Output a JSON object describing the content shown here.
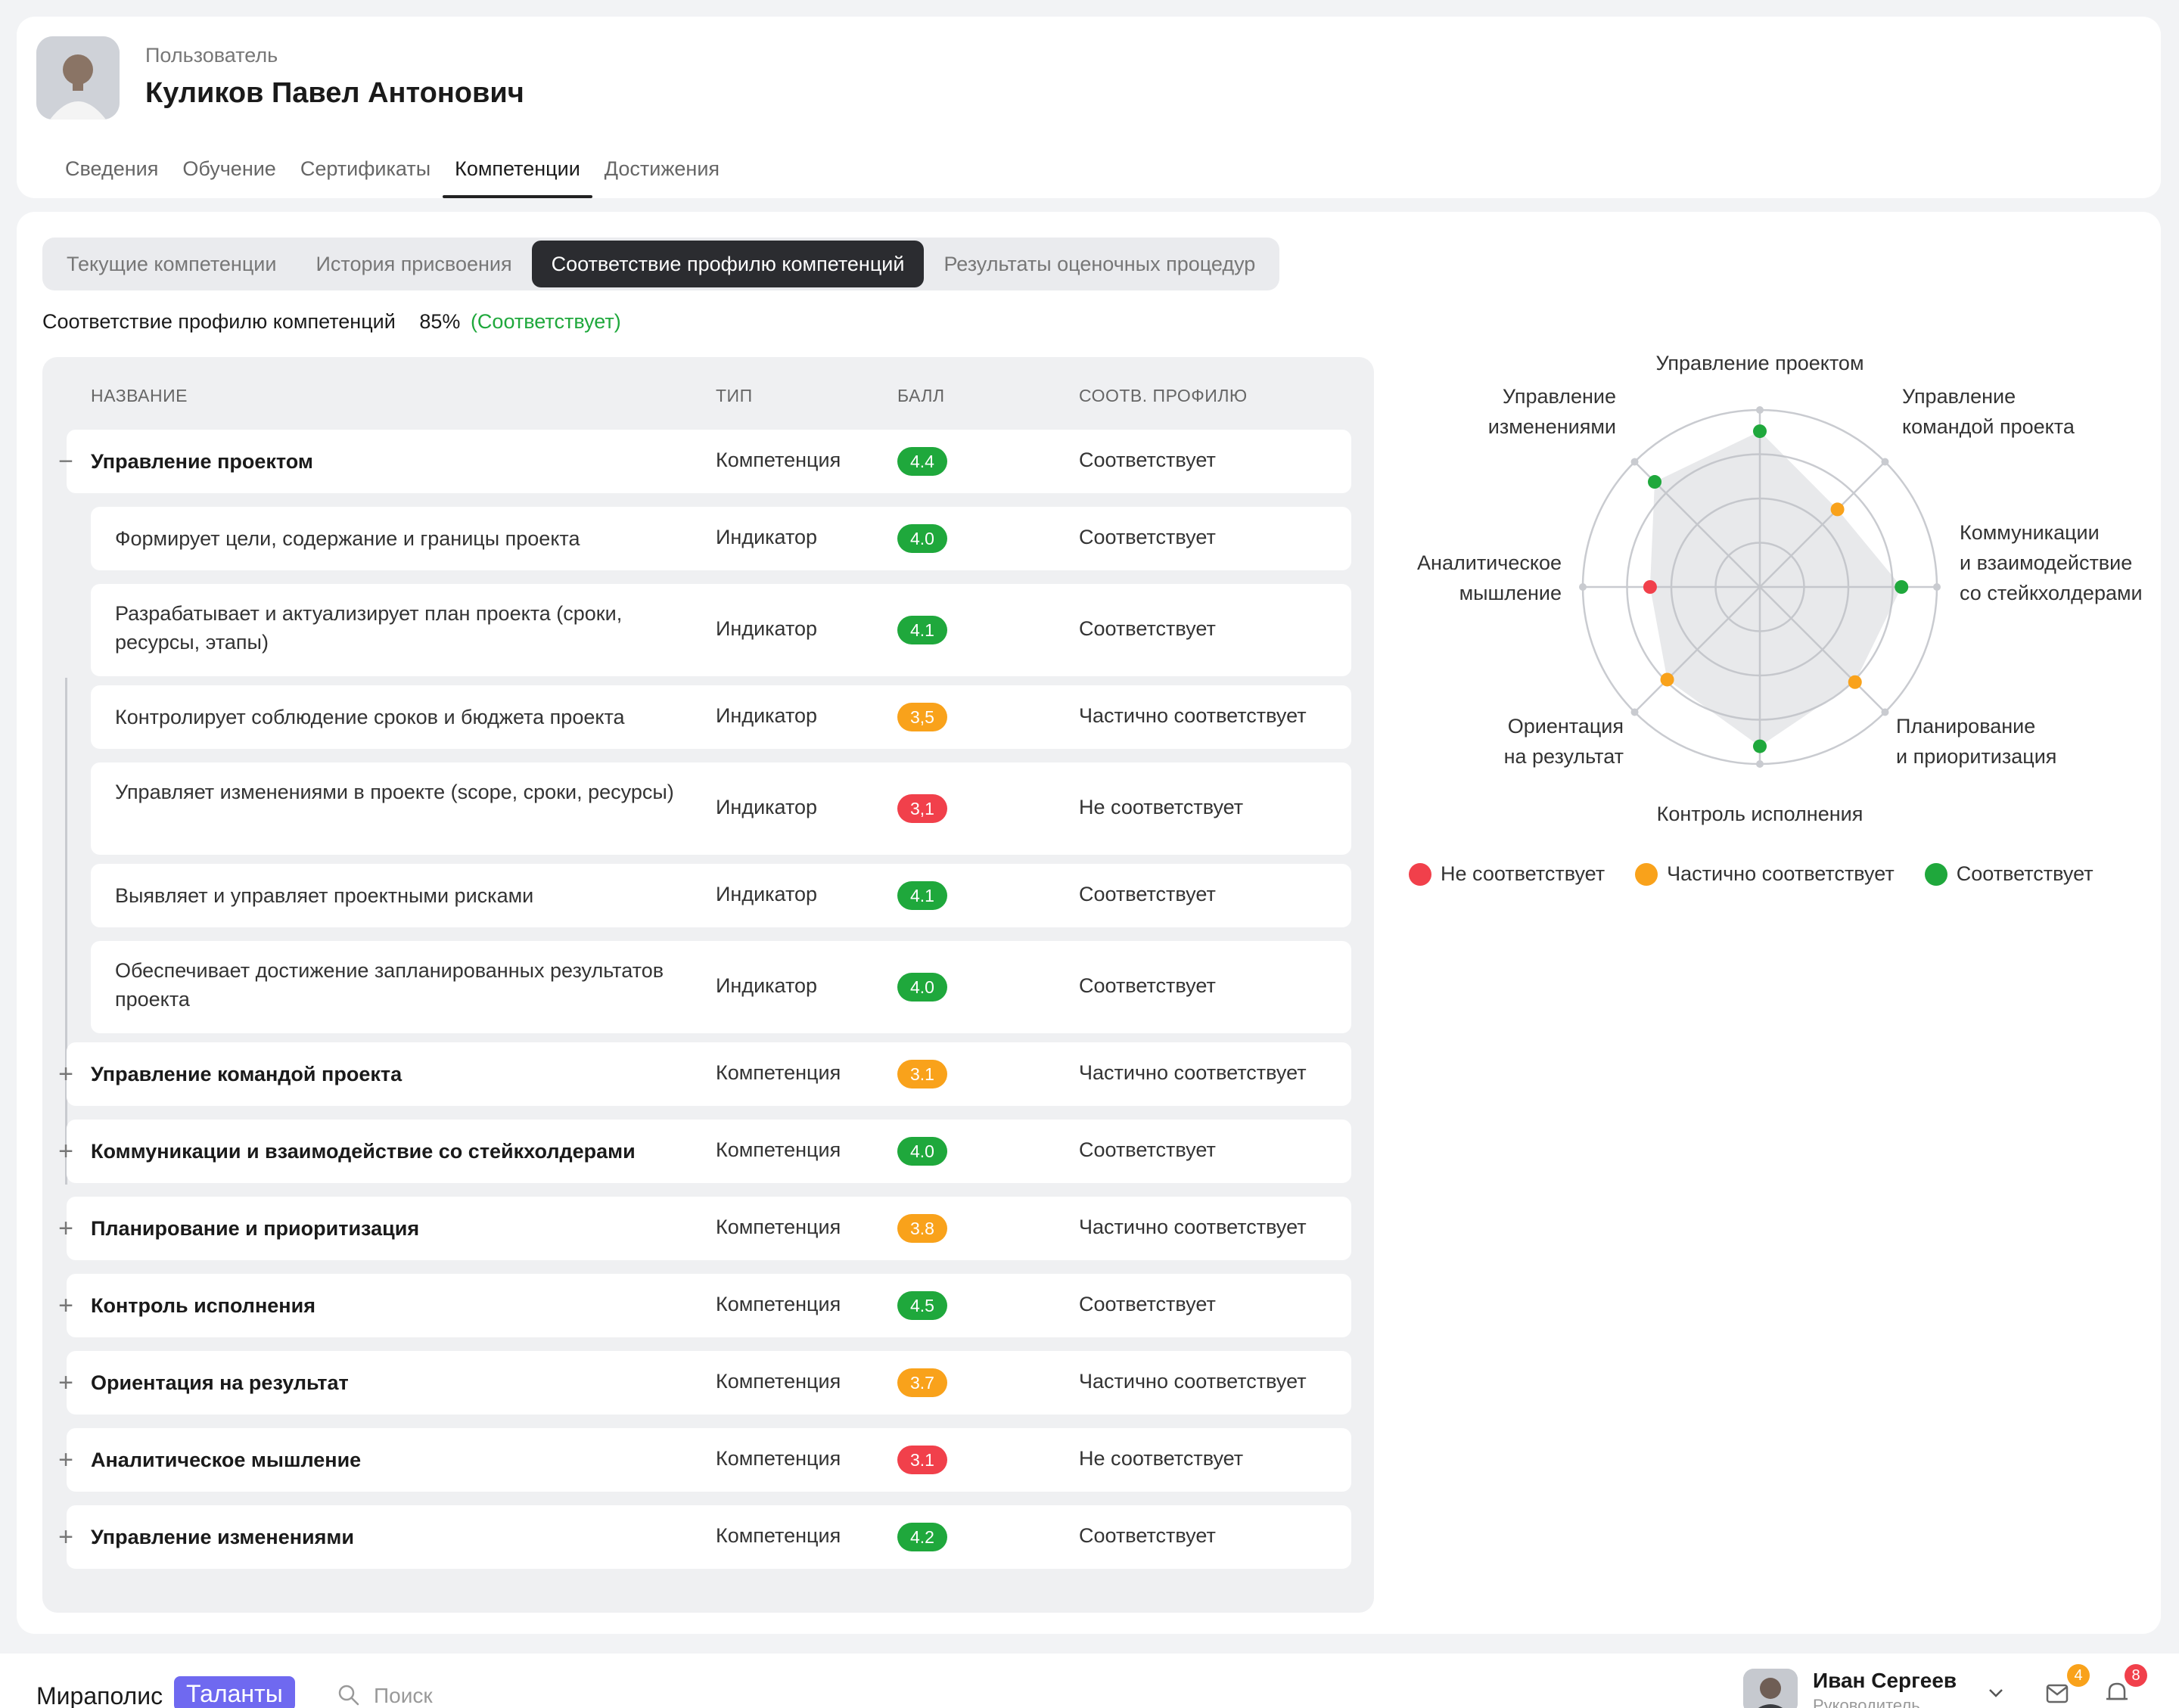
{
  "profile": {
    "label": "Пользователь",
    "name": "Куликов Павел Антонович",
    "tabs": [
      "Сведения",
      "Обучение",
      "Сертификаты",
      "Компетенции",
      "Достижения"
    ],
    "active_tab": 3
  },
  "subtabs": [
    "Текущие компетенции",
    "История присвоения",
    "Соответствие профилю компетенций",
    "Результаты оценочных процедур"
  ],
  "active_subtab": 2,
  "summary": {
    "label": "Соответствие профилю компетенций",
    "percent": "85%",
    "status": "(Соответствует)"
  },
  "table": {
    "headers": {
      "name": "НАЗВАНИЕ",
      "type": "ТИП",
      "score": "БАЛЛ",
      "match": "СООТВ. ПРОФИЛЮ"
    },
    "rows": [
      {
        "kind": "competency",
        "expanded": true,
        "name": "Управление проектом",
        "type": "Компетенция",
        "score": "4.4",
        "level": "green",
        "match": "Соответствует"
      },
      {
        "kind": "indicator",
        "name": "Формирует цели, содержание и границы проекта",
        "type": "Индикатор",
        "score": "4.0",
        "level": "green",
        "match": "Соответствует"
      },
      {
        "kind": "indicator",
        "name": "Разрабатывает и актуализирует план проекта (сроки, ресурсы, этапы)",
        "type": "Индикатор",
        "score": "4.1",
        "level": "green",
        "match": "Соответствует"
      },
      {
        "kind": "indicator",
        "name": "Контролирует соблюдение сроков и бюджета проекта",
        "type": "Индикатор",
        "score": "3,5",
        "level": "orange",
        "match": "Частично соответствует"
      },
      {
        "kind": "indicator",
        "name": "Управляет изменениями в проекте (scope, сроки, ресурсы)",
        "type": "Индикатор",
        "score": "3,1",
        "level": "red",
        "match": "Не соответствует"
      },
      {
        "kind": "indicator",
        "name": "Выявляет и управляет проектными рисками",
        "type": "Индикатор",
        "score": "4.1",
        "level": "green",
        "match": "Соответствует"
      },
      {
        "kind": "indicator",
        "name": "Обеспечивает достижение запланированных результатов проекта",
        "type": "Индикатор",
        "score": "4.0",
        "level": "green",
        "match": "Соответствует"
      },
      {
        "kind": "competency",
        "expanded": false,
        "name": "Управление командой проекта",
        "type": "Компетенция",
        "score": "3.1",
        "level": "orange",
        "match": "Частично соответствует"
      },
      {
        "kind": "competency",
        "expanded": false,
        "name": "Коммуникации и взаимодействие со стейкхолдерами",
        "type": "Компетенция",
        "score": "4.0",
        "level": "green",
        "match": "Соответствует"
      },
      {
        "kind": "competency",
        "expanded": false,
        "name": "Планирование и приоритизация",
        "type": "Компетенция",
        "score": "3.8",
        "level": "orange",
        "match": "Частично соответствует"
      },
      {
        "kind": "competency",
        "expanded": false,
        "name": "Контроль исполнения",
        "type": "Компетенция",
        "score": "4.5",
        "level": "green",
        "match": "Соответствует"
      },
      {
        "kind": "competency",
        "expanded": false,
        "name": "Ориентация на результат",
        "type": "Компетенция",
        "score": "3.7",
        "level": "orange",
        "match": "Частично соответствует"
      },
      {
        "kind": "competency",
        "expanded": false,
        "name": "Аналитическое мышление",
        "type": "Компетенция",
        "score": "3.1",
        "level": "red",
        "match": "Не соответствует"
      },
      {
        "kind": "competency",
        "expanded": false,
        "name": "Управление изменениями",
        "type": "Компетенция",
        "score": "4.2",
        "level": "green",
        "match": "Соответствует"
      }
    ]
  },
  "chart_data": {
    "type": "radar",
    "axes": [
      {
        "label": "Управление проектом",
        "value": 4.4,
        "level": "green"
      },
      {
        "label": "Управление командой проекта",
        "value": 3.1,
        "level": "orange"
      },
      {
        "label": "Коммуникации и взаимодействие со стейкхолдерами",
        "value": 4.0,
        "level": "green"
      },
      {
        "label": "Планирование и приоритизация",
        "value": 3.8,
        "level": "orange"
      },
      {
        "label": "Контроль исполнения",
        "value": 4.5,
        "level": "green"
      },
      {
        "label": "Ориентация на результат",
        "value": 3.7,
        "level": "orange"
      },
      {
        "label": "Аналитическое мышление",
        "value": 3.1,
        "level": "red"
      },
      {
        "label": "Управление изменениями",
        "value": 4.2,
        "level": "green"
      }
    ],
    "axis_labels_display": [
      [
        "Управление проектом"
      ],
      [
        "Управление",
        "командой проекта"
      ],
      [
        "Коммуникации",
        "и взаимодействие",
        "со стейкхолдерами"
      ],
      [
        "Планирование",
        "и приоритизация"
      ],
      [
        "Контроль исполнения"
      ],
      [
        "Ориентация",
        "на результат"
      ],
      [
        "Аналитическое",
        "мышление"
      ],
      [
        "Управление",
        "изменениями"
      ]
    ],
    "rmax": 5,
    "rings": 4,
    "legend": [
      {
        "label": "Не соответствует",
        "color": "#f1404b"
      },
      {
        "label": "Частично соответствует",
        "color": "#f9a21b"
      },
      {
        "label": "Соответствует",
        "color": "#1fa83c"
      }
    ]
  },
  "colors": {
    "green": "#1fa83c",
    "orange": "#f9a21b",
    "red": "#f1404b"
  },
  "bottombar": {
    "brand": "Мираполис",
    "brand_tag": "Таланты",
    "search_placeholder": "Поиск",
    "user_name": "Иван Сергеев",
    "user_role": "Руководитель",
    "messages_count": "4",
    "notifications_count": "8"
  }
}
